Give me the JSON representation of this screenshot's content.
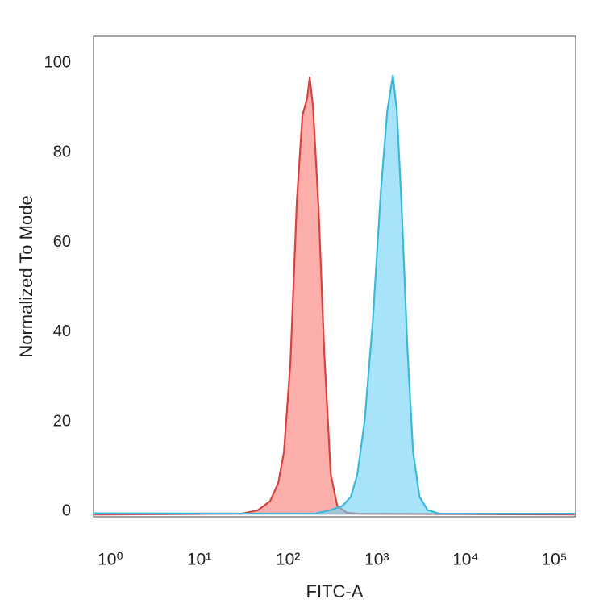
{
  "chart_data": {
    "type": "area",
    "xlabel": "FITC-A",
    "ylabel": "Normalized To Mode",
    "xscale": "log",
    "xlim": [
      0.83,
      224000
    ],
    "ylim": [
      -0.5,
      106.7
    ],
    "xticks": [
      {
        "value": 1,
        "label": "10⁰"
      },
      {
        "value": 10,
        "label": "10¹"
      },
      {
        "value": 100,
        "label": "10²"
      },
      {
        "value": 1000,
        "label": "10³"
      },
      {
        "value": 10000,
        "label": "10⁴"
      },
      {
        "value": 100000,
        "label": "10⁵"
      }
    ],
    "yticks": [
      0,
      20,
      40,
      60,
      80,
      100
    ],
    "series": [
      {
        "color": "#d9423f",
        "fill": "rgba(250,120,115,0.6)",
        "x": [
          0.83,
          39,
          59,
          81,
          100,
          116,
          137,
          162,
          187,
          212,
          226,
          246,
          285,
          330,
          390,
          461,
          593,
          811,
          224000
        ],
        "values": [
          0,
          0.2,
          1,
          3,
          7,
          14,
          34,
          70,
          89,
          93,
          97.5,
          91,
          68,
          36,
          9,
          2,
          0.4,
          0.2,
          0
        ]
      },
      {
        "color": "#3bb8dc",
        "fill": "rgba(110,210,245,0.6)",
        "x": [
          0.83,
          256,
          390,
          533,
          658,
          778,
          940,
          1159,
          1428,
          1688,
          1954,
          2168,
          2461,
          2851,
          3297,
          3900,
          4808,
          6579,
          224000
        ],
        "values": [
          0.3,
          0.2,
          1,
          2,
          4,
          9,
          21,
          43,
          72,
          90,
          98,
          90,
          68,
          37,
          14,
          4,
          1,
          0.2,
          0.2
        ]
      }
    ]
  }
}
